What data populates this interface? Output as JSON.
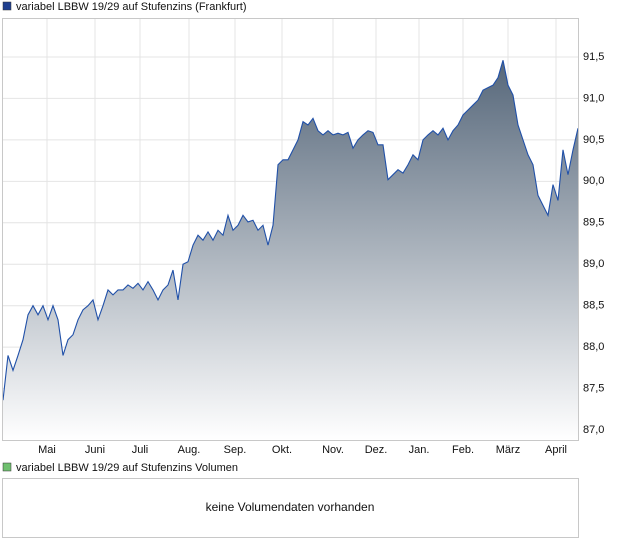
{
  "chart_data": [
    {
      "type": "area",
      "title": "variabel LBBW 19/29 auf Stufenzins (Frankfurt)",
      "color": "#2050a8",
      "fill_color": "#56677a",
      "legend_color": "#1f3f8f",
      "grid": true,
      "xlim": [
        0,
        115
      ],
      "xticks": [
        {
          "value": 8.8,
          "label": "Mai"
        },
        {
          "value": 18.4,
          "label": "Juni"
        },
        {
          "value": 27.4,
          "label": "Juli"
        },
        {
          "value": 37.2,
          "label": "Aug."
        },
        {
          "value": 46.4,
          "label": "Sep."
        },
        {
          "value": 55.8,
          "label": "Okt."
        },
        {
          "value": 66,
          "label": "Nov."
        },
        {
          "value": 74.6,
          "label": "Dez."
        },
        {
          "value": 83.2,
          "label": "Jan."
        },
        {
          "value": 92,
          "label": "Feb."
        },
        {
          "value": 101,
          "label": "März"
        },
        {
          "value": 110.6,
          "label": "April"
        }
      ],
      "ylim": [
        86.88,
        91.97
      ],
      "yticks": [
        {
          "value": 87.0,
          "label": "87,0"
        },
        {
          "value": 87.5,
          "label": "87,5"
        },
        {
          "value": 88.0,
          "label": "88,0"
        },
        {
          "value": 88.5,
          "label": "88,5"
        },
        {
          "value": 89.0,
          "label": "89,0"
        },
        {
          "value": 89.5,
          "label": "89,5"
        },
        {
          "value": 90.0,
          "label": "90,0"
        },
        {
          "value": 90.5,
          "label": "90,5"
        },
        {
          "value": 91.0,
          "label": "91,0"
        },
        {
          "value": 91.5,
          "label": "91,5"
        }
      ],
      "values": [
        87.36,
        87.9,
        87.72,
        87.9,
        88.09,
        88.39,
        88.5,
        88.39,
        88.5,
        88.33,
        88.5,
        88.33,
        87.9,
        88.09,
        88.15,
        88.33,
        88.45,
        88.5,
        88.57,
        88.33,
        88.5,
        88.69,
        88.63,
        88.69,
        88.69,
        88.75,
        88.71,
        88.77,
        88.69,
        88.79,
        88.69,
        88.57,
        88.69,
        88.75,
        88.93,
        88.57,
        89.0,
        89.03,
        89.23,
        89.35,
        89.29,
        89.39,
        89.29,
        89.41,
        89.35,
        89.59,
        89.41,
        89.47,
        89.59,
        89.51,
        89.53,
        89.41,
        89.47,
        89.23,
        89.47,
        90.2,
        90.26,
        90.26,
        90.38,
        90.5,
        90.72,
        90.68,
        90.76,
        90.61,
        90.56,
        90.61,
        90.56,
        90.58,
        90.56,
        90.59,
        90.4,
        90.5,
        90.56,
        90.61,
        90.59,
        90.44,
        90.44,
        90.02,
        90.08,
        90.14,
        90.1,
        90.2,
        90.32,
        90.26,
        90.5,
        90.56,
        90.61,
        90.56,
        90.64,
        90.5,
        90.61,
        90.68,
        90.8,
        90.86,
        90.92,
        90.98,
        91.1,
        91.13,
        91.16,
        91.25,
        91.46,
        91.16,
        91.04,
        90.68,
        90.5,
        90.32,
        90.2,
        89.83,
        89.71,
        89.59,
        89.96,
        89.77,
        90.38,
        90.08,
        90.38,
        90.64
      ]
    },
    {
      "type": "bar",
      "title": "variabel LBBW 19/29 auf Stufenzins Volumen",
      "legend_color": "#6fc06f",
      "message": "keine Volumendaten vorhanden"
    }
  ]
}
